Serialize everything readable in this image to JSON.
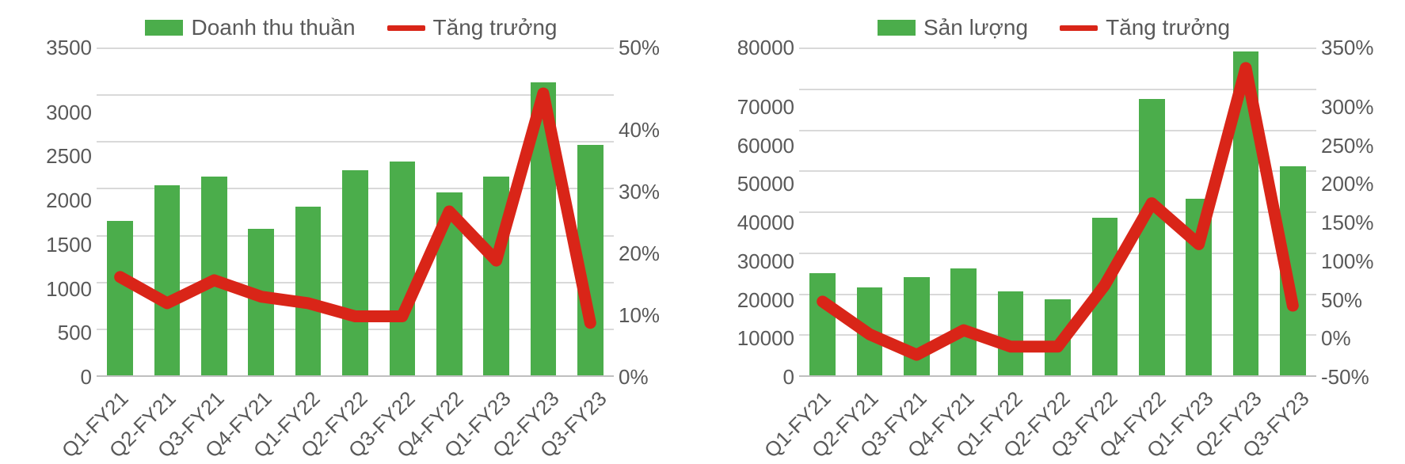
{
  "global": {
    "text_color": "#595959",
    "grid_color": "#d9d9d9",
    "axis_color": "#bfbfbf",
    "background_color": "#ffffff",
    "axis_fontsize": 26,
    "legend_fontsize": 28
  },
  "charts": [
    {
      "type": "bar+line",
      "legend": [
        {
          "kind": "bar",
          "label": "Doanh thu thuần",
          "color": "#4bad4b"
        },
        {
          "kind": "line",
          "label": "Tăng trưởng",
          "color": "#d92518"
        }
      ],
      "categories": [
        "Q1-FY21",
        "Q2-FY21",
        "Q3-FY21",
        "Q4-FY21",
        "Q1-FY22",
        "Q2-FY22",
        "Q3-FY22",
        "Q4-FY22",
        "Q1-FY23",
        "Q2-FY23",
        "Q3-FY23"
      ],
      "bar_series": {
        "color": "#4bad4b",
        "bar_width": 0.55,
        "values": [
          1650,
          2030,
          2120,
          1560,
          1800,
          2190,
          2280,
          1950,
          2120,
          3130,
          2460
        ]
      },
      "line_series": {
        "color": "#d92518",
        "line_width": 6,
        "values": [
          15,
          11,
          14.5,
          12,
          11,
          9,
          9,
          25,
          17.5,
          43,
          8
        ]
      },
      "y_left": {
        "min": 0,
        "max": 3500,
        "step": 500,
        "suffix": ""
      },
      "y_right": {
        "min": 0,
        "max": 50,
        "step": 10,
        "suffix": "%"
      },
      "x_label_rotation": -45
    },
    {
      "type": "bar+line",
      "legend": [
        {
          "kind": "bar",
          "label": "Sản lượng",
          "color": "#4bad4b"
        },
        {
          "kind": "line",
          "label": "Tăng trưởng",
          "color": "#d92518"
        }
      ],
      "categories": [
        "Q1-FY21",
        "Q2-FY21",
        "Q3-FY21",
        "Q4-FY21",
        "Q1-FY22",
        "Q2-FY22",
        "Q3-FY22",
        "Q4-FY22",
        "Q1-FY23",
        "Q2-FY23",
        "Q3-FY23"
      ],
      "bar_series": {
        "color": "#4bad4b",
        "bar_width": 0.55,
        "values": [
          25000,
          21500,
          24000,
          26000,
          20500,
          18500,
          38500,
          67500,
          43000,
          79000,
          51000
        ]
      },
      "line_series": {
        "color": "#d92518",
        "line_width": 6,
        "values": [
          40,
          0,
          -25,
          5,
          -15,
          -15,
          60,
          160,
          110,
          325,
          35
        ]
      },
      "y_left": {
        "min": 0,
        "max": 80000,
        "step": 10000,
        "suffix": ""
      },
      "y_right": {
        "min": -50,
        "max": 350,
        "step": 50,
        "suffix": "%"
      },
      "x_label_rotation": -45
    }
  ]
}
